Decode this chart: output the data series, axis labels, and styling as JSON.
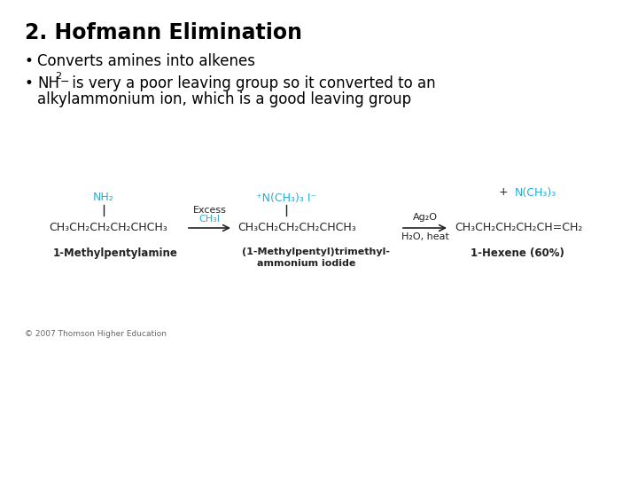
{
  "title": "2. Hofmann Elimination",
  "bullet1": "Converts amines into alkenes",
  "bullet2_nh": "NH",
  "bullet2_sub2": "2",
  "bullet2_minus": "−",
  "bullet2_rest": " is very a poor leaving group so it converted to an",
  "bullet2_line2": "alkylammonium ion, which is a good leaving group",
  "bg_color": "#ffffff",
  "title_color": "#000000",
  "text_color": "#000000",
  "cyan_color": "#29ABD4",
  "dark_color": "#222222",
  "copyright": "© 2007 Thomson Higher Education",
  "mol1_main": "CH₃CH₂CH₂CH₂CHCH₃",
  "mol1_nh2": "NH₂",
  "mol1_name": "1-Methylpentylamine",
  "reagent1_line1": "Excess",
  "reagent1_line2": "CH₃I",
  "mol2_main": "CH₃CH₂CH₂CH₂CHCH₃",
  "mol2_sub_n": "⁺N(CH₃)₃ I⁻",
  "mol2_name1": "(1-Methylpentyl)trimethyl-",
  "mol2_name2": "ammonium iodide",
  "reagent2_line1": "Ag₂O",
  "reagent2_line2": "H₂O, heat",
  "mol3_main": "CH₃CH₂CH₂CH₂CH=CH₂",
  "mol3_byproduct_plus": "+",
  "mol3_byproduct_n": "N(CH₃)₃",
  "mol3_name": "1-Hexene (60%)"
}
